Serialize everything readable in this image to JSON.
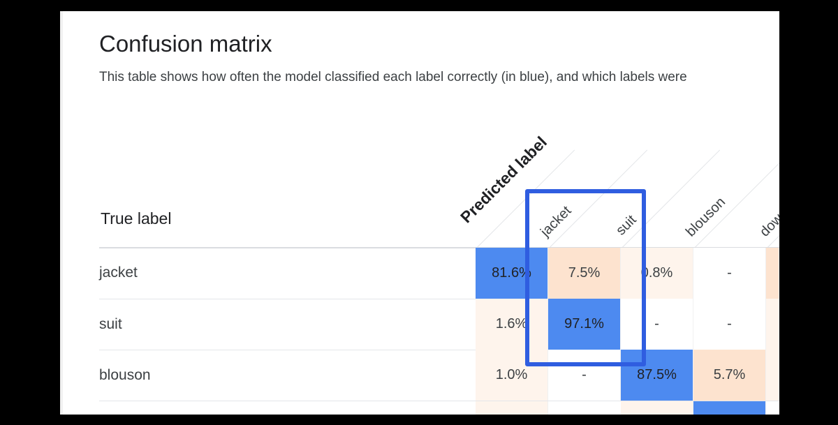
{
  "title": "Confusion matrix",
  "subtitle": "This table shows how often the model classified each label correctly (in blue), and which labels were",
  "axis": {
    "true_label": "True label",
    "predicted_label": "Predicted label"
  },
  "columns": [
    "jacket",
    "suit",
    "blouson",
    "dow"
  ],
  "rows": [
    {
      "label": "jacket",
      "cells": [
        "81.6%",
        "7.5%",
        "0.8%",
        "-"
      ]
    },
    {
      "label": "suit",
      "cells": [
        "1.6%",
        "97.1%",
        "-",
        "-"
      ]
    },
    {
      "label": "blouson",
      "cells": [
        "1.0%",
        "-",
        "87.5%",
        "5.7%"
      ]
    }
  ],
  "colors": {
    "correct": "#4d8af0",
    "confused": "#fde3cf",
    "highlight_box": "#2f5de0"
  }
}
